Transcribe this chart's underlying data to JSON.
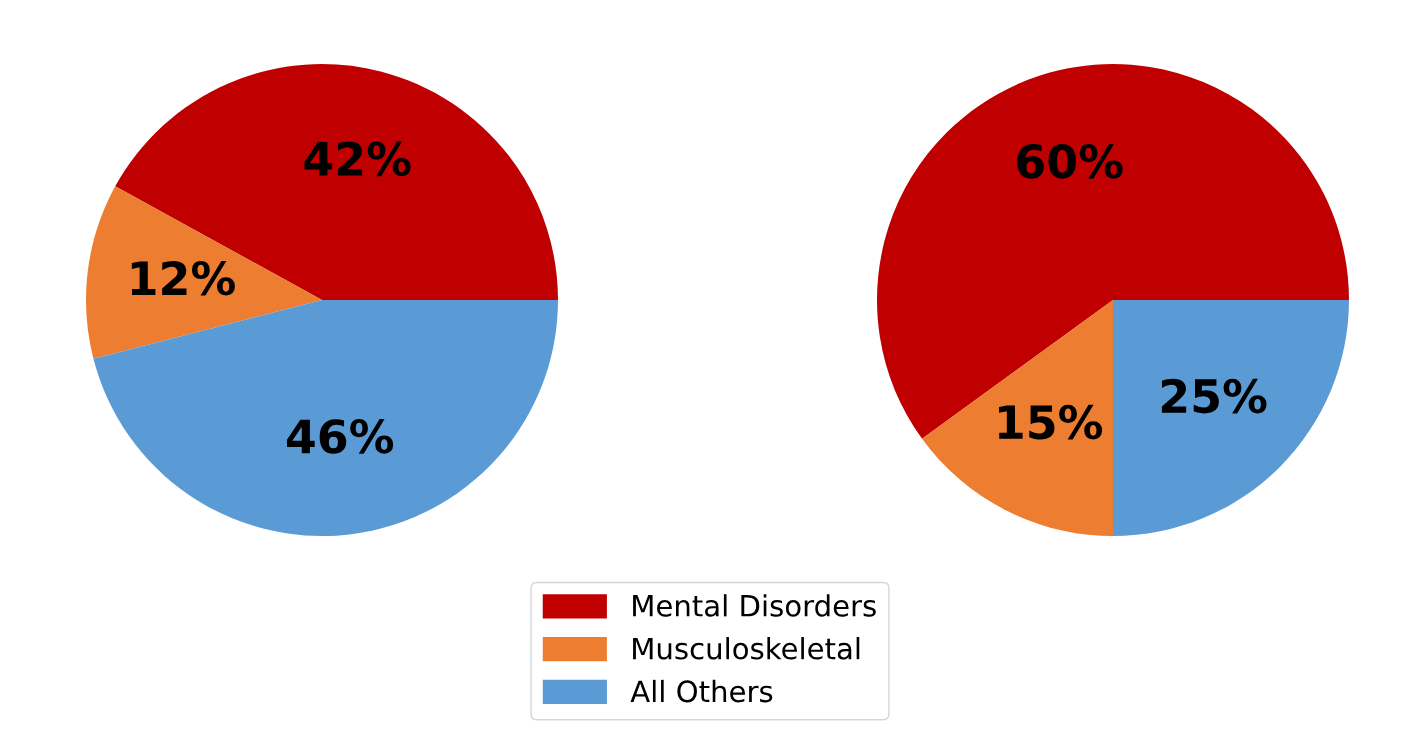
{
  "chart_data": [
    {
      "type": "pie",
      "categories": [
        "Mental Disorders",
        "Musculoskeletal",
        "All Others"
      ],
      "values": [
        42,
        12,
        46
      ],
      "colors": [
        "#c00000",
        "#ed7d31",
        "#5b9bd5"
      ],
      "value_labels": [
        "42%",
        "12%",
        "46%"
      ],
      "legend": "bottom"
    },
    {
      "type": "pie",
      "categories": [
        null,
        null,
        null
      ],
      "values": [
        60,
        15,
        25
      ],
      "colors": [
        "#c00000",
        "#ed7d31",
        "#5b9bd5"
      ],
      "value_labels": [
        "60%",
        "15%",
        "25%"
      ]
    }
  ]
}
